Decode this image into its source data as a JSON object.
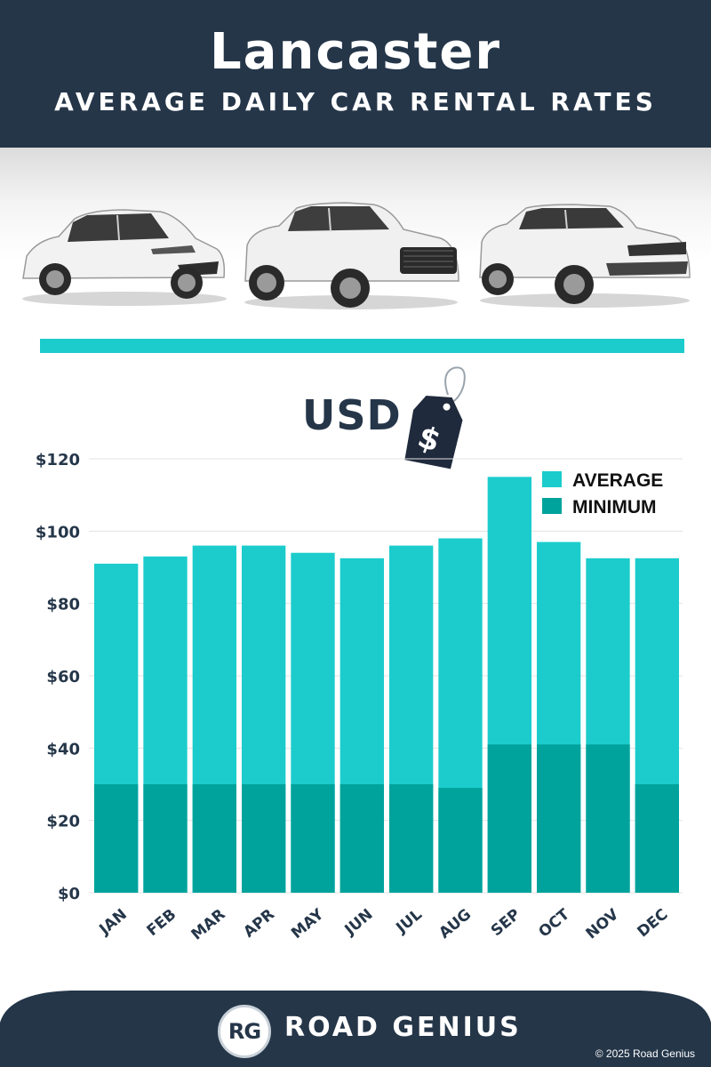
{
  "header": {
    "title": "Lancaster",
    "subtitle": "AVERAGE DAILY CAR RENTAL RATES"
  },
  "cars": [
    "hatchback-car",
    "audi-suv",
    "range-rover-suv"
  ],
  "currency_label": "USD",
  "price_tag_symbol": "$",
  "colors": {
    "header_bg": "#253649",
    "accent": "#1ccccc",
    "average": "#1ccccc",
    "minimum": "#00a39c"
  },
  "chart_data": {
    "type": "bar",
    "stacked_overlay": true,
    "categories": [
      "JAN",
      "FEB",
      "MAR",
      "APR",
      "MAY",
      "JUN",
      "JUL",
      "AUG",
      "SEP",
      "OCT",
      "NOV",
      "DEC"
    ],
    "series": [
      {
        "name": "AVERAGE",
        "values": [
          91,
          93,
          96,
          96,
          94,
          92.5,
          96,
          98,
          115,
          97,
          92.5,
          92.5
        ]
      },
      {
        "name": "MINIMUM",
        "values": [
          30,
          30,
          30,
          30,
          30,
          30,
          30,
          29,
          41,
          41,
          41,
          30
        ]
      }
    ],
    "ylim": [
      0,
      120
    ],
    "yticks": [
      "$0",
      "$20",
      "$40",
      "$60",
      "$80",
      "$100",
      "$120"
    ],
    "ytick_values": [
      0,
      20,
      40,
      60,
      80,
      100,
      120
    ],
    "grid": true,
    "legend_position": "top-right"
  },
  "footer": {
    "logo_initials": "RG",
    "brand": "ROAD GENIUS",
    "copyright": "© 2025 Road Genius"
  }
}
